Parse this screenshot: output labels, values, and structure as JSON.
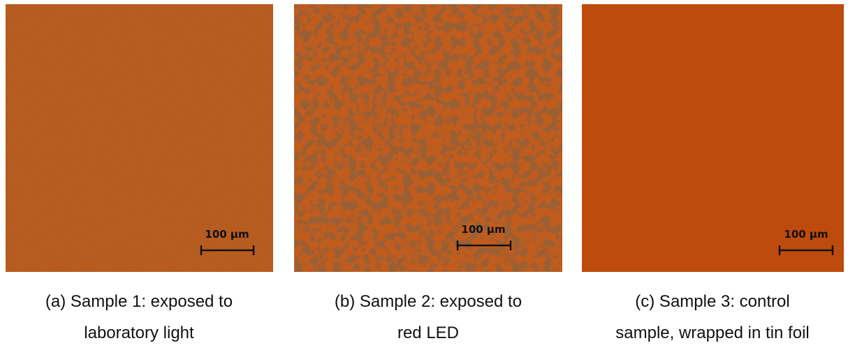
{
  "panels": [
    {
      "scale_label": "100 µm",
      "caption": [
        "(a) Sample 1: exposed to",
        "laboratory light"
      ]
    },
    {
      "scale_label": "100 µm",
      "caption": [
        "(b) Sample 2: exposed to",
        "red LED"
      ]
    },
    {
      "scale_label": "100 µm",
      "caption": [
        "(c) Sample 3: control",
        "sample, wrapped in tin foil"
      ]
    }
  ]
}
